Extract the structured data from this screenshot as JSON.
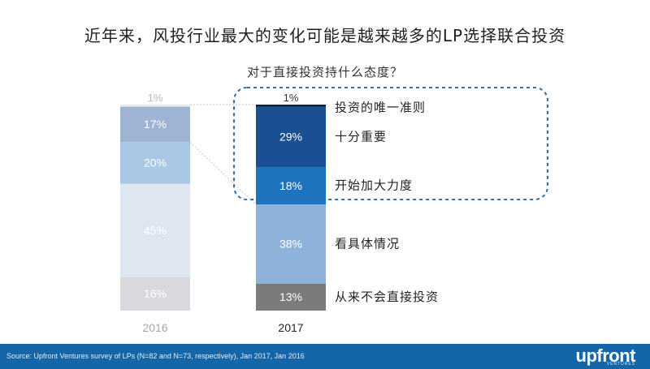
{
  "title": "近年来，风投行业最大的变化可能是越来越多的LP选择联合投资",
  "subtitle": "对于直接投资持什么态度？",
  "chart_data": {
    "type": "bar",
    "stacked": true,
    "percent": true,
    "categories": [
      "2016",
      "2017"
    ],
    "series": [
      {
        "name": "从来不会直接投资",
        "values": [
          16,
          13
        ],
        "labels": [
          "16%",
          "13%"
        ]
      },
      {
        "name": "看具体情况",
        "values": [
          45,
          38
        ],
        "labels": [
          "45%",
          "38%"
        ]
      },
      {
        "name": "开始加大力度",
        "values": [
          20,
          18
        ],
        "labels": [
          "20%",
          "18%"
        ]
      },
      {
        "name": "十分重要",
        "values": [
          17,
          29
        ],
        "labels": [
          "17%",
          "29%"
        ]
      },
      {
        "name": "投资的唯一准则",
        "values": [
          1,
          1
        ],
        "labels": [
          "1%",
          "1%"
        ]
      }
    ],
    "colors_2016": [
      "#d7d9dc",
      "#dde6f1",
      "#a9c8e6",
      "#9fb3d2",
      "#eaeaea"
    ],
    "colors_2017": [
      "#7a7b7d",
      "#8eb3db",
      "#1e73be",
      "#1a4f93",
      "#0d2242"
    ],
    "label_colors_2016": [
      "#ffffff",
      "#ffffff",
      "#ffffff",
      "#ffffff",
      "#b9b9b9"
    ],
    "label_colors_2017": [
      "#ffffff",
      "#ffffff",
      "#ffffff",
      "#ffffff",
      "#333333"
    ],
    "year_colors": [
      "#a8a8a8",
      "#222222"
    ],
    "legend": "right",
    "grid": false,
    "highlight_outline_color": "#2a6fb0"
  },
  "footer": {
    "source": "Source: Upfront Ventures survey of LPs (N=82 and N=73, respectively), Jan 2017, Jan 2016",
    "logo": "upfront",
    "logo_sub": "VENTURES",
    "background": "#1466a8"
  }
}
